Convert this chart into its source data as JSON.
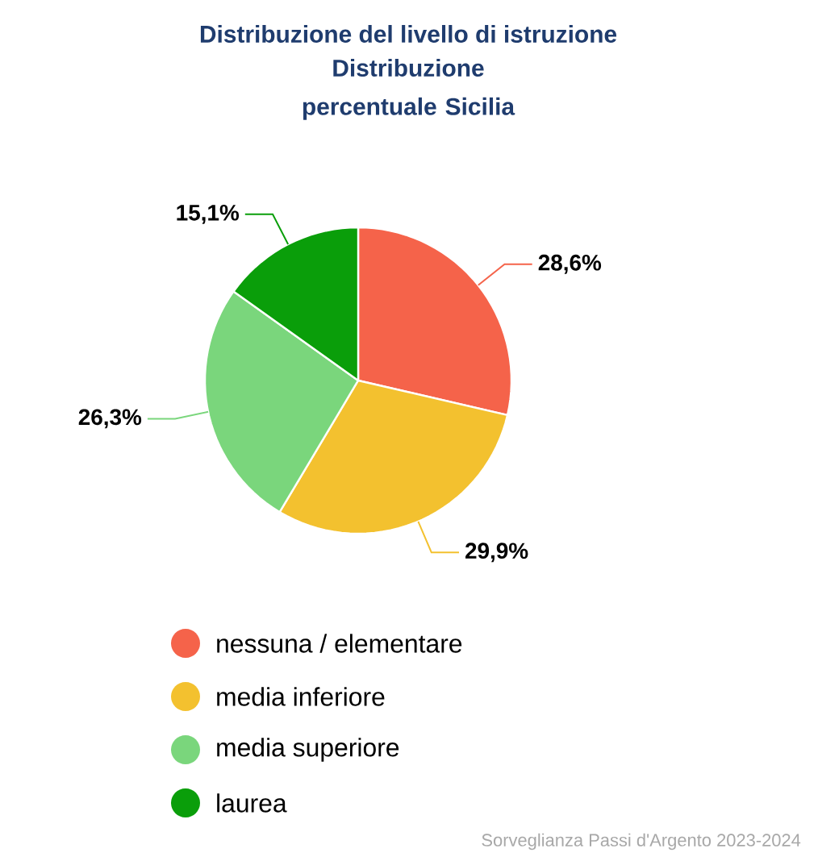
{
  "chart_data": {
    "type": "pie",
    "title": "Distribuzione del livello di istruzione",
    "subtitle": "Distribuzione percentuale Sicilia",
    "categories": [
      "nessuna / elementare",
      "media inferiore",
      "media superiore",
      "laurea"
    ],
    "values": [
      28.6,
      29.9,
      26.3,
      15.1
    ],
    "value_labels": [
      "28,6%",
      "29,9%",
      "26,3%",
      "15,1%"
    ],
    "colors": [
      "#f5634a",
      "#f3c12f",
      "#7ad67c",
      "#0a9e0a"
    ],
    "legend": "bottom",
    "annotations": [
      "Sorveglianza Passi d'Argento 2023-2024"
    ]
  }
}
